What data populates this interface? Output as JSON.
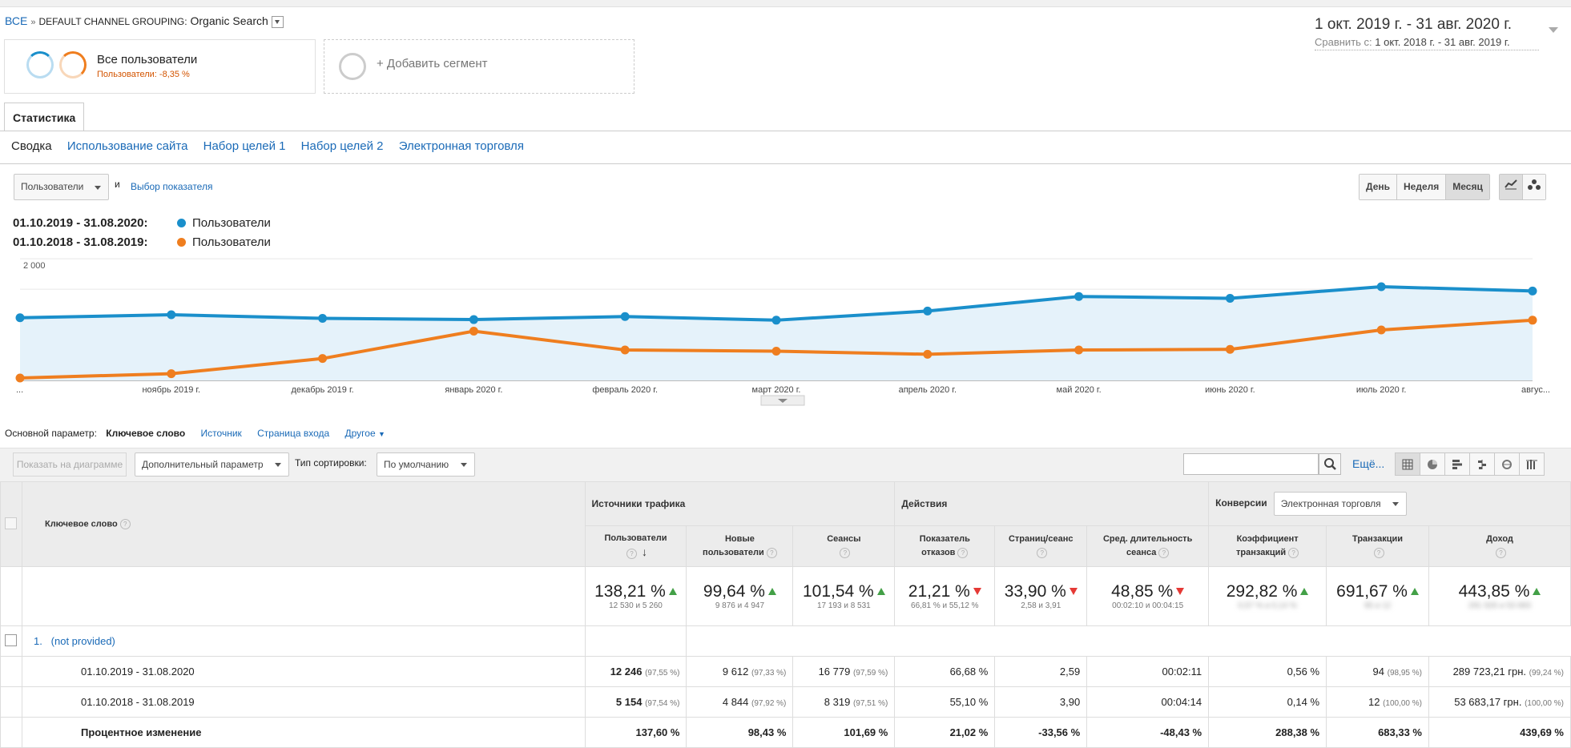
{
  "breadcrumb": {
    "root": "ВСЕ",
    "separator": "»",
    "dimension": "DEFAULT CHANNEL GROUPING:",
    "value": "Organic Search"
  },
  "date_range": {
    "main": "1 окт. 2019 г. - 31 авг. 2020 г.",
    "compare_label": "Сравнить с:",
    "compare_value": "1 окт. 2018 г. - 31 авг. 2019 г."
  },
  "segments": {
    "all_users": {
      "title": "Все пользователи",
      "subtitle": "Пользователи: -8,35 %"
    },
    "add": "+ Добавить сегмент"
  },
  "tab": "Статистика",
  "subnav": [
    "Сводка",
    "Использование сайта",
    "Набор целей 1",
    "Набор целей 2",
    "Электронная торговля"
  ],
  "chart_controls": {
    "metric": "Пользователи",
    "and": "и",
    "pick_metric": "Выбор показателя",
    "granularity": [
      "День",
      "Неделя",
      "Месяц"
    ],
    "active_granularity": "Месяц"
  },
  "legend": [
    {
      "date": "01.10.2019 - 31.08.2020:",
      "label": "Пользователи",
      "color": "#1a8fcb"
    },
    {
      "date": "01.10.2018 - 31.08.2019:",
      "label": "Пользователи",
      "color": "#ef7e1f"
    }
  ],
  "chart_data": {
    "type": "line",
    "y_ticks": [
      {
        "value": 1000,
        "label": "1 000"
      },
      {
        "value": 2000,
        "label": "2 000"
      }
    ],
    "ylim": [
      0,
      2000
    ],
    "x_labels": [
      "...",
      "ноябрь 2019 г.",
      "декабрь 2019 г.",
      "январь 2020 г.",
      "февраль 2020 г.",
      "март 2020 г.",
      "апрель 2020 г.",
      "май 2020 г.",
      "июнь 2020 г.",
      "июль 2020 г.",
      "авгус..."
    ],
    "series": [
      {
        "name": "Пользователи",
        "color": "#1a8fcb",
        "fill": true,
        "values": [
          1030,
          1080,
          1020,
          1000,
          1050,
          990,
          1140,
          1380,
          1350,
          1540,
          1470
        ]
      },
      {
        "name": "Пользователи",
        "color": "#ef7e1f",
        "fill": false,
        "values": [
          40,
          110,
          360,
          810,
          500,
          480,
          430,
          500,
          510,
          830,
          990
        ]
      }
    ]
  },
  "dimensions": {
    "label": "Основной параметр:",
    "current": "Ключевое слово",
    "others": [
      "Источник",
      "Страница входа"
    ],
    "other": "Другое"
  },
  "toolbar": {
    "plot_rows": "Показать на диаграмме",
    "secondary": "Дополнительный параметр",
    "sort_label": "Тип сортировки:",
    "sort_value": "По умолчанию",
    "more": "Ещё..."
  },
  "table": {
    "dimension_header": "Ключевое слово",
    "groups": {
      "acquisition": "Источники трафика",
      "behavior": "Действия",
      "conversions": "Конверсии",
      "conversion_select": "Электронная торговля"
    },
    "columns": [
      {
        "name": "Пользователи",
        "line2": "",
        "sorted": true
      },
      {
        "name": "Новые",
        "line2": "пользователи"
      },
      {
        "name": "Сеансы",
        "line2": ""
      },
      {
        "name": "Показатель",
        "line2": "отказов"
      },
      {
        "name": "Страниц/сеанс",
        "line2": ""
      },
      {
        "name": "Сред. длительность",
        "line2": "сеанса"
      },
      {
        "name": "Коэффициент",
        "line2": "транзакций"
      },
      {
        "name": "Транзакции",
        "line2": ""
      },
      {
        "name": "Доход",
        "line2": ""
      }
    ],
    "totals": [
      {
        "pct": "138,21 %",
        "dir": "up",
        "sub": "12 530 и 5 260"
      },
      {
        "pct": "99,64 %",
        "dir": "up",
        "sub": "9 876 и 4 947"
      },
      {
        "pct": "101,54 %",
        "dir": "up",
        "sub": "17 193 и 8 531"
      },
      {
        "pct": "21,21 %",
        "dir": "down",
        "sub": "66,81 % и 55,12 %"
      },
      {
        "pct": "33,90 %",
        "dir": "down",
        "sub": "2,58 и 3,91"
      },
      {
        "pct": "48,85 %",
        "dir": "down",
        "sub": "00:02:10 и 00:04:15"
      },
      {
        "pct": "292,82 %",
        "dir": "up",
        "sub": "0,57 % и 0,14 %"
      },
      {
        "pct": "691,67 %",
        "dir": "up",
        "sub": "95 и 12"
      },
      {
        "pct": "443,85 %",
        "dir": "up",
        "sub": "291 926 и 53 683"
      }
    ],
    "row": {
      "index": "1.",
      "keyword": "(not provided)"
    },
    "periods": [
      {
        "label": "01.10.2019 - 31.08.2020",
        "cells": [
          {
            "v": "12 246",
            "s": "(97,55 %)",
            "b": true
          },
          {
            "v": "9 612",
            "s": "(97,33 %)"
          },
          {
            "v": "16 779",
            "s": "(97,59 %)"
          },
          {
            "v": "66,68 %"
          },
          {
            "v": "2,59"
          },
          {
            "v": "00:02:11"
          },
          {
            "v": "0,56 %"
          },
          {
            "v": "94",
            "s": "(98,95 %)"
          },
          {
            "v": "289 723,21 грн.",
            "s": "(99,24 %)"
          }
        ]
      },
      {
        "label": "01.10.2018 - 31.08.2019",
        "cells": [
          {
            "v": "5 154",
            "s": "(97,54 %)",
            "b": true
          },
          {
            "v": "4 844",
            "s": "(97,92 %)"
          },
          {
            "v": "8 319",
            "s": "(97,51 %)"
          },
          {
            "v": "55,10 %"
          },
          {
            "v": "3,90"
          },
          {
            "v": "00:04:14"
          },
          {
            "v": "0,14 %"
          },
          {
            "v": "12",
            "s": "(100,00 %)"
          },
          {
            "v": "53 683,17 грн.",
            "s": "(100,00 %)"
          }
        ]
      }
    ],
    "change": {
      "label": "Процентное изменение",
      "values": [
        "137,60 %",
        "98,43 %",
        "101,69 %",
        "21,02 %",
        "-33,56 %",
        "-48,43 %",
        "288,38 %",
        "683,33 %",
        "439,69 %"
      ]
    }
  }
}
